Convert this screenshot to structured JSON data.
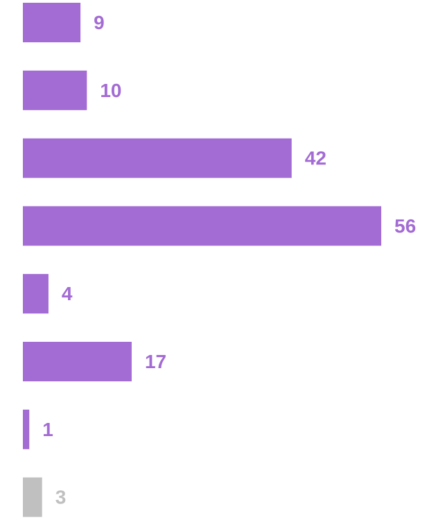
{
  "colors": {
    "accent": "#a36bd4",
    "muted": "#c0c0c0",
    "background": "#ffffff"
  },
  "chart_data": {
    "type": "bar",
    "orientation": "horizontal",
    "title": "",
    "xlabel": "",
    "ylabel": "",
    "grid": false,
    "legend": "none",
    "xlim": [
      0,
      56
    ],
    "values": [
      9,
      10,
      42,
      56,
      4,
      17,
      1,
      3
    ],
    "value_labels": [
      "9",
      "10",
      "42",
      "56",
      "4",
      "17",
      "1",
      "3"
    ],
    "bar_colors": [
      "#a36bd4",
      "#a36bd4",
      "#a36bd4",
      "#a36bd4",
      "#a36bd4",
      "#a36bd4",
      "#a36bd4",
      "#c0c0c0"
    ]
  }
}
